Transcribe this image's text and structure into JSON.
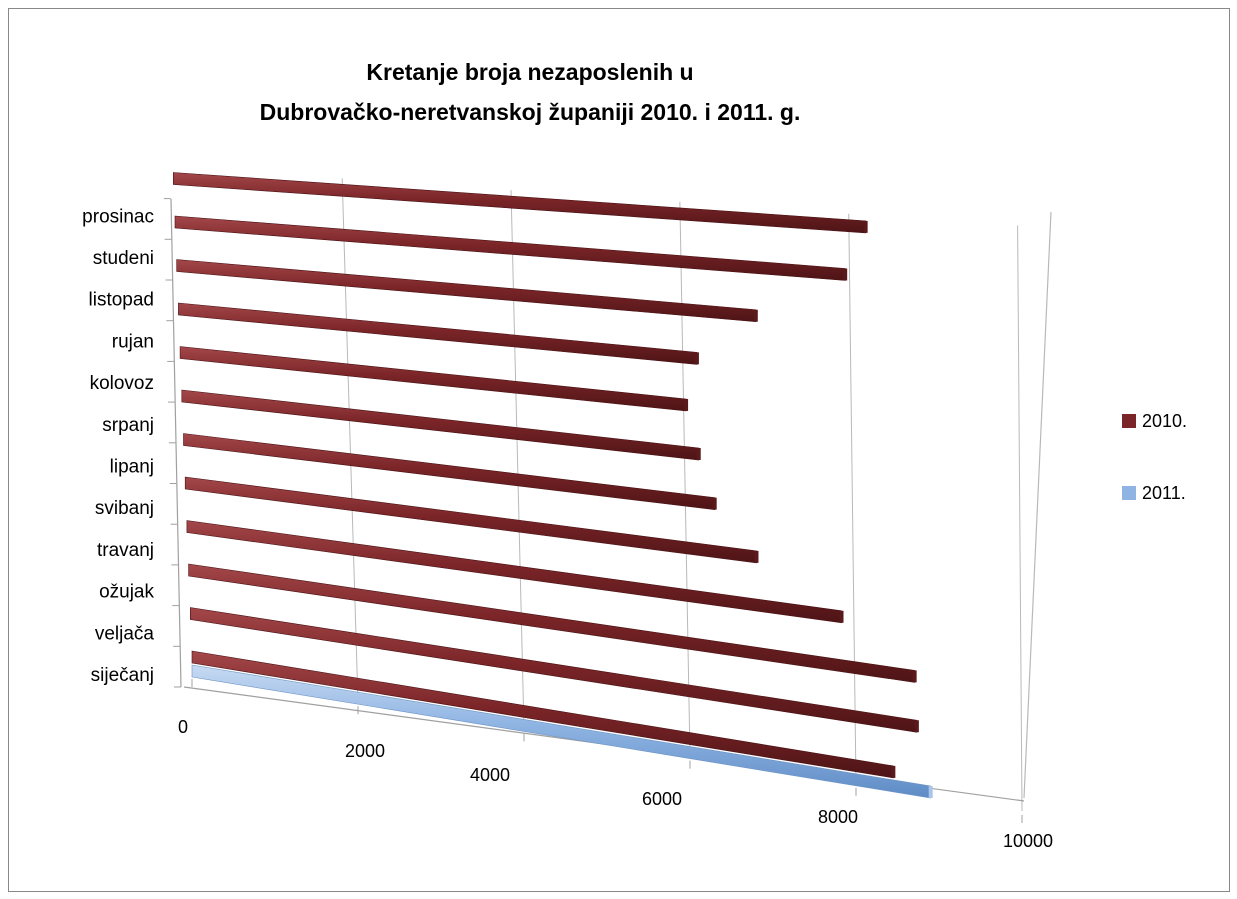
{
  "chart_data": {
    "type": "bar",
    "orientation": "horizontal",
    "style": "3d",
    "title": "Kretanje broja nezaposlenih u\nDubrovačko-neretvanskoj županiji 2010. i 2011. g.",
    "title_lines": [
      "Kretanje broja nezaposlenih u",
      "Dubrovačko-neretvanskoj županiji 2010. i 2011. g."
    ],
    "categories": [
      "siječanj",
      "veljača",
      "ožujak",
      "travanj",
      "svibanj",
      "lipanj",
      "srpanj",
      "kolovoz",
      "rujan",
      "listopad",
      "studeni",
      "prosinac"
    ],
    "series": [
      {
        "name": "2010.",
        "color": "#7b2528",
        "values": [
          8450,
          8740,
          8720,
          7850,
          6840,
          6350,
          6170,
          6030,
          6170,
          6880,
          7950,
          8200
        ]
      },
      {
        "name": "2011.",
        "color": "#8fb4e3",
        "values": [
          8900,
          null,
          null,
          null,
          null,
          null,
          null,
          null,
          null,
          null,
          null,
          null
        ]
      }
    ],
    "xlim": [
      0,
      10000
    ],
    "xticks": [
      0,
      2000,
      4000,
      6000,
      8000,
      10000
    ],
    "grid": true,
    "legend_position": "right"
  }
}
